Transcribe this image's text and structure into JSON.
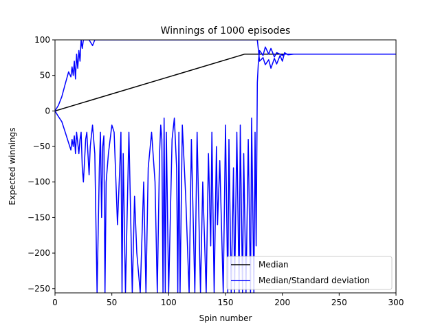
{
  "chart_data": {
    "type": "line",
    "title": "Winnings of 1000 episodes",
    "xlabel": "Spin number",
    "ylabel": "Expected winnings",
    "xlim": [
      0,
      300
    ],
    "ylim": [
      -256,
      100
    ],
    "xticks": [
      0,
      50,
      100,
      150,
      200,
      250,
      300
    ],
    "xtick_labels": [
      "0",
      "50",
      "100",
      "150",
      "200",
      "250",
      "300"
    ],
    "yticks": [
      100,
      50,
      0,
      -50,
      -100,
      -150,
      -200,
      -250
    ],
    "ytick_labels": [
      "100",
      "50",
      "0",
      "−50",
      "−100",
      "−150",
      "−200",
      "−250"
    ],
    "grid": false,
    "legend_position": "lower-right",
    "legend": [
      "Median",
      "Median/Standard deviation"
    ],
    "series": [
      {
        "name": "Median",
        "color": "#000000",
        "x": [
          0,
          167,
          200,
          300
        ],
        "y": [
          0,
          80,
          80,
          80
        ]
      },
      {
        "name": "Median/Standard deviation",
        "color": "#0000ff",
        "role": "upper",
        "x": [
          0,
          3,
          6,
          9,
          12,
          14,
          15,
          16,
          17,
          18,
          19,
          20,
          21,
          22,
          23,
          24,
          25,
          27,
          30,
          33,
          35,
          38,
          40,
          43,
          45,
          47,
          50,
          53,
          55,
          58,
          60,
          65,
          70,
          75,
          80,
          85,
          88,
          90,
          93,
          95,
          98,
          100,
          102,
          105,
          108,
          110,
          112,
          115,
          118,
          120,
          122,
          125,
          128,
          130,
          133,
          135,
          138,
          140,
          143,
          145,
          148,
          150,
          153,
          155,
          158,
          160,
          163,
          165,
          168,
          170,
          173,
          175,
          177,
          178,
          180,
          183,
          185,
          188,
          190,
          193,
          195,
          198,
          200,
          202,
          205,
          210,
          250,
          300
        ],
        "y": [
          0,
          8,
          20,
          38,
          55,
          48,
          62,
          50,
          70,
          45,
          80,
          60,
          85,
          70,
          100,
          88,
          100,
          100,
          100,
          92,
          100,
          100,
          100,
          100,
          100,
          100,
          100,
          100,
          100,
          100,
          100,
          100,
          100,
          100,
          100,
          100,
          100,
          100,
          100,
          100,
          100,
          100,
          100,
          100,
          100,
          100,
          100,
          100,
          100,
          100,
          100,
          100,
          100,
          100,
          100,
          100,
          100,
          100,
          100,
          100,
          100,
          100,
          100,
          100,
          100,
          100,
          100,
          100,
          100,
          100,
          100,
          100,
          100,
          100,
          70,
          75,
          65,
          72,
          60,
          74,
          66,
          78,
          70,
          82,
          79,
          80,
          80,
          80
        ]
      },
      {
        "name": "Median/Standard deviation",
        "color": "#0000ff",
        "role": "lower",
        "x": [
          0,
          3,
          6,
          9,
          12,
          14,
          15,
          16,
          17,
          18,
          19,
          20,
          21,
          22,
          23,
          24,
          25,
          26,
          27,
          28,
          29,
          30,
          31,
          32,
          33,
          35,
          37,
          39,
          40,
          41,
          42,
          43,
          44,
          45,
          47,
          50,
          52,
          55,
          57,
          58,
          59,
          60,
          62,
          65,
          68,
          70,
          72,
          75,
          78,
          80,
          82,
          85,
          88,
          90,
          92,
          93,
          94,
          95,
          96,
          97,
          98,
          100,
          103,
          105,
          107,
          108,
          109,
          110,
          112,
          115,
          118,
          120,
          123,
          125,
          128,
          130,
          133,
          135,
          137,
          138,
          140,
          142,
          143,
          145,
          148,
          150,
          152,
          153,
          155,
          157,
          158,
          160,
          162,
          163,
          165,
          166,
          168,
          170,
          172,
          173,
          175,
          176,
          177,
          178,
          179,
          180,
          183,
          185,
          188,
          190,
          193,
          195,
          198,
          200,
          202,
          205,
          210,
          250,
          300
        ],
        "y": [
          0,
          -8,
          -15,
          -30,
          -45,
          -55,
          -40,
          -50,
          -35,
          -60,
          -30,
          -45,
          -60,
          -40,
          -30,
          -80,
          -100,
          -70,
          -40,
          -30,
          -60,
          -90,
          -50,
          -35,
          -20,
          -60,
          -256,
          -80,
          -30,
          -150,
          -50,
          -35,
          -256,
          -100,
          -60,
          -20,
          -30,
          -160,
          -80,
          -30,
          -256,
          -60,
          -256,
          -30,
          -256,
          -120,
          -200,
          -256,
          -100,
          -256,
          -80,
          -30,
          -100,
          -256,
          -60,
          -20,
          -40,
          -256,
          -10,
          -256,
          -30,
          -256,
          -40,
          -10,
          -80,
          -256,
          -30,
          -256,
          -20,
          -120,
          -256,
          -40,
          -256,
          -30,
          -256,
          -100,
          -256,
          -60,
          -190,
          -30,
          -256,
          -50,
          -160,
          -70,
          -256,
          -20,
          -256,
          -40,
          -256,
          -80,
          -256,
          -30,
          -256,
          -20,
          -256,
          -60,
          -256,
          -40,
          -256,
          -10,
          -256,
          -30,
          -190,
          40,
          70,
          85,
          78,
          90,
          80,
          88,
          76,
          82,
          80,
          78,
          80,
          80,
          80,
          80,
          80
        ]
      }
    ]
  }
}
